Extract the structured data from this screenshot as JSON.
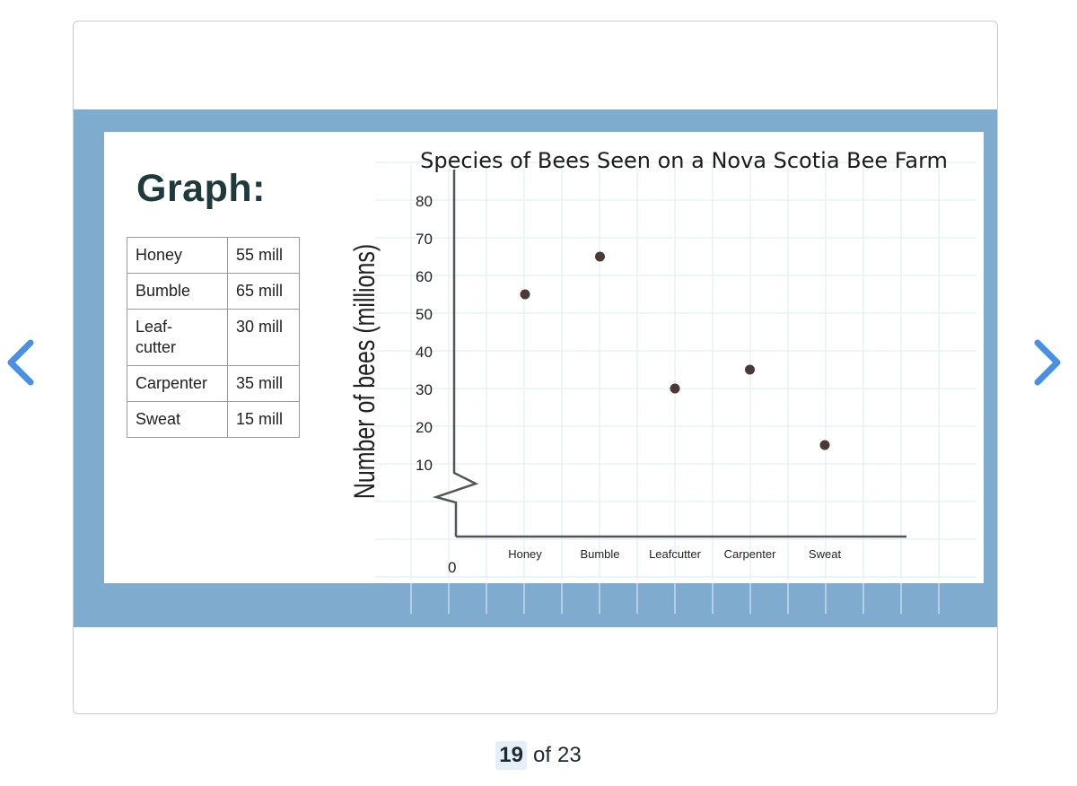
{
  "slide": {
    "heading": "Graph:",
    "table": [
      {
        "name": "Honey",
        "value": "55 mill"
      },
      {
        "name": "Bumble",
        "value": "65 mill"
      },
      {
        "name": "Leaf-\ncutter",
        "value": "30 mill"
      },
      {
        "name": "Carpenter",
        "value": "35 mill"
      },
      {
        "name": "Sweat",
        "value": "15 mill"
      }
    ]
  },
  "chart_data": {
    "type": "scatter",
    "title": "Species of Bees Seen on a Nova Scotia Bee Farm",
    "ylabel": "Number of bees (millions)",
    "xlabel": "",
    "categories": [
      "Honey",
      "Bumble",
      "Leafcutter",
      "Carpenter",
      "Sweat"
    ],
    "values": [
      55,
      65,
      30,
      35,
      15
    ],
    "y_ticks": [
      10,
      20,
      30,
      40,
      50,
      60,
      70,
      80
    ],
    "origin_label": "0",
    "ylim": [
      0,
      80
    ],
    "axis_break": true,
    "grid": true,
    "point_color": "#4a3a36",
    "axis_color": "#555555",
    "grid_color": "#d8eef3"
  },
  "pager": {
    "current": "19",
    "of_label": "of",
    "total": "23"
  },
  "colors": {
    "slide_band": "#7facce",
    "arrow": "#4a90e2"
  },
  "icons": {
    "prev": "chevron-left-icon",
    "next": "chevron-right-icon"
  }
}
